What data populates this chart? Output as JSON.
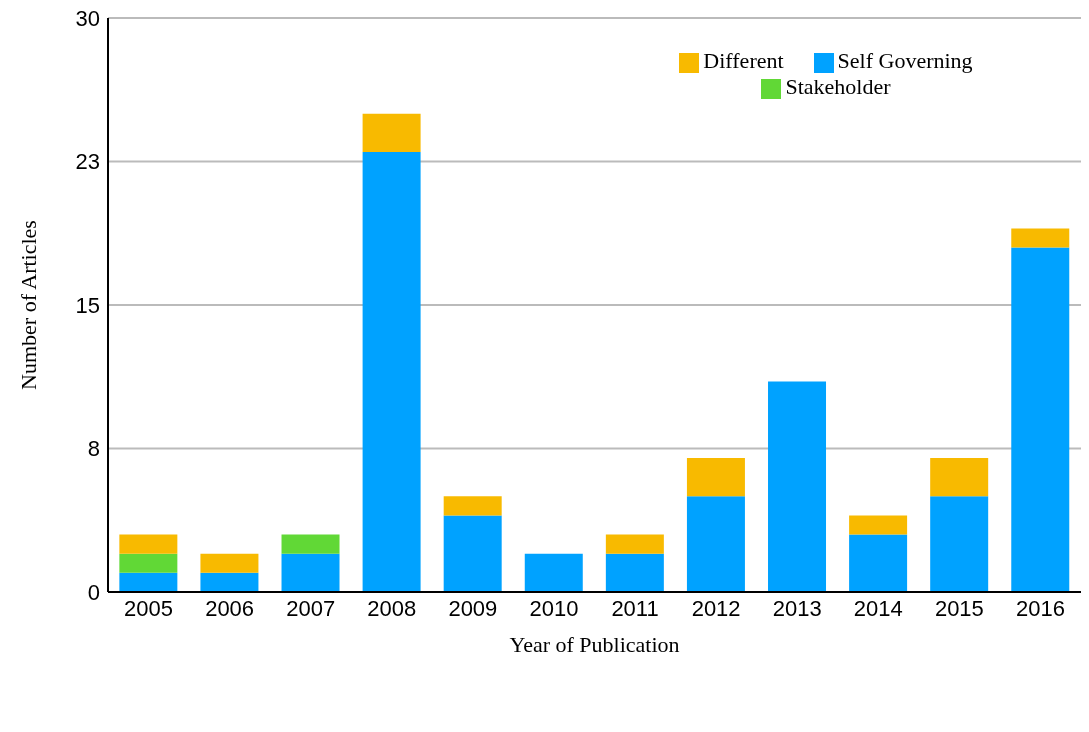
{
  "chart_data": {
    "type": "bar",
    "stacked": true,
    "xlabel": "Year of Publication",
    "ylabel": "Number of Articles",
    "categories": [
      "2005",
      "2006",
      "2007",
      "2008",
      "2009",
      "2010",
      "2011",
      "2012",
      "2013",
      "2014",
      "2015",
      "2016"
    ],
    "series": [
      {
        "name": "Self Governing",
        "color": "#00a2ff",
        "values": [
          1,
          1,
          2,
          23,
          4,
          2,
          2,
          5,
          11,
          3,
          5,
          18
        ]
      },
      {
        "name": "Stakeholder",
        "color": "#61d836",
        "values": [
          1,
          0,
          1,
          0,
          0,
          0,
          0,
          0,
          0,
          0,
          0,
          0
        ]
      },
      {
        "name": "Different",
        "color": "#f8ba00",
        "values": [
          1,
          1,
          0,
          2,
          1,
          0,
          1,
          2,
          0,
          1,
          2,
          1
        ]
      }
    ],
    "ylim": [
      0,
      30
    ],
    "yticks": [
      0,
      {
        "value": 7.5,
        "label": "8"
      },
      15,
      {
        "value": 22.5,
        "label": "23"
      },
      30
    ],
    "grid": "y",
    "legend": "top right"
  }
}
